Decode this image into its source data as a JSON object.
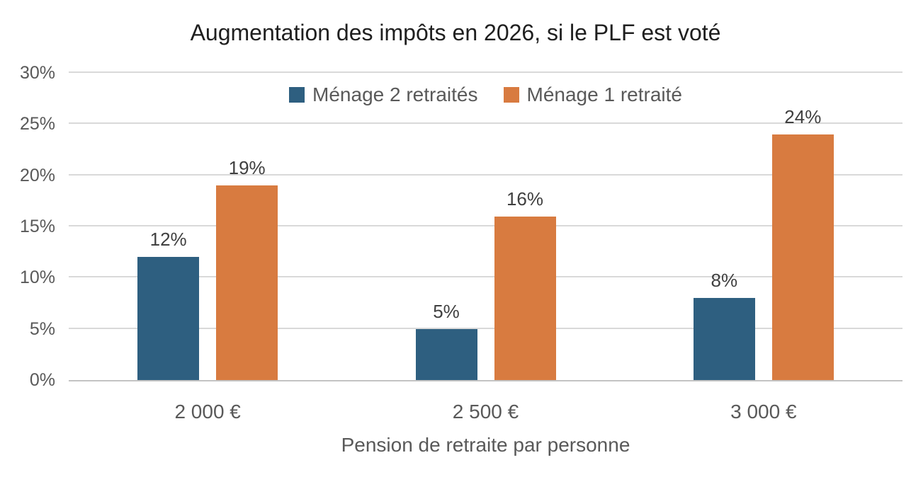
{
  "chart_data": {
    "type": "bar",
    "title": "Augmentation des impôts en 2026, si le PLF est voté",
    "xlabel": "Pension de retraite par personne",
    "ylabel": "",
    "categories": [
      "2 000 €",
      "2 500 €",
      "3 000 €"
    ],
    "series": [
      {
        "name": "Ménage 2 retraités",
        "color": "#2E5F80",
        "values": [
          12,
          5,
          8
        ],
        "labels": [
          "12%",
          "5%",
          "8%"
        ]
      },
      {
        "name": "Ménage 1 retraité",
        "color": "#D87B40",
        "values": [
          19,
          16,
          24
        ],
        "labels": [
          "19%",
          "16%",
          "24%"
        ]
      }
    ],
    "ylim": [
      0,
      30
    ],
    "yticks": [
      0,
      5,
      10,
      15,
      20,
      25,
      30
    ],
    "ytick_labels": [
      "0%",
      "5%",
      "10%",
      "15%",
      "20%",
      "25%",
      "30%"
    ],
    "grid": true,
    "gridline_color": "#D9D9D9",
    "axis_line_color": "#C3C3C3",
    "legend_position": "top-center",
    "background": "#FFFFFF",
    "text_colors": {
      "title": "#1F1F1F",
      "data_labels": "#404040",
      "axis_labels": "#595959"
    }
  }
}
